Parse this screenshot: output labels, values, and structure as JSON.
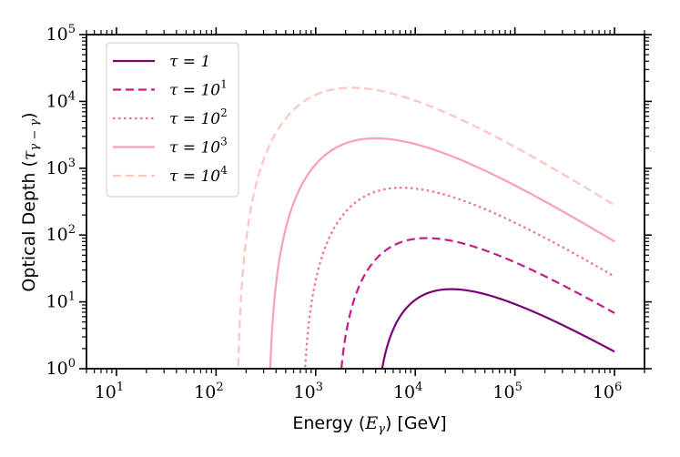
{
  "chart_data": {
    "type": "line",
    "title": "",
    "xlabel": "Energy (E_γ) [GeV]",
    "ylabel": "Optical Depth (τ_{γ−γ})",
    "xscale": "log",
    "yscale": "log",
    "xlim": [
      5,
      2000000
    ],
    "ylim": [
      1,
      100000
    ],
    "x_ticks": [
      {
        "value": 10,
        "base": "10",
        "exp": "1"
      },
      {
        "value": 100,
        "base": "10",
        "exp": "2"
      },
      {
        "value": 1000,
        "base": "10",
        "exp": "3"
      },
      {
        "value": 10000,
        "base": "10",
        "exp": "4"
      },
      {
        "value": 100000,
        "base": "10",
        "exp": "5"
      },
      {
        "value": 1000000,
        "base": "10",
        "exp": "6"
      }
    ],
    "y_ticks": [
      {
        "value": 1,
        "base": "10",
        "exp": "0"
      },
      {
        "value": 10,
        "base": "10",
        "exp": "1"
      },
      {
        "value": 100,
        "base": "10",
        "exp": "2"
      },
      {
        "value": 1000,
        "base": "10",
        "exp": "3"
      },
      {
        "value": 10000,
        "base": "10",
        "exp": "4"
      },
      {
        "value": 100000,
        "base": "10",
        "exp": "5"
      }
    ],
    "legend_position": "top-left",
    "series": [
      {
        "name": "τ = 1",
        "label_base": "τ = 1",
        "label_exp": "",
        "color": "#7a0177",
        "dash": "solid",
        "threshold": 3850,
        "peak_x": 23000,
        "peak_y": 15.5,
        "x_end": 1000000,
        "y_end": 1.8
      },
      {
        "name": "τ = 10^1",
        "label_base": "τ = 10",
        "label_exp": "1",
        "color": "#c51b8a",
        "dash": "dashed",
        "threshold": 1600,
        "peak_x": 13000,
        "peak_y": 90,
        "x_end": 1000000,
        "y_end": 6.8
      },
      {
        "name": "τ = 10^2",
        "label_base": "τ = 10",
        "label_exp": "2",
        "color": "#f768a1",
        "dash": "dotted",
        "threshold": 720,
        "peak_x": 7300,
        "peak_y": 510,
        "x_end": 1000000,
        "y_end": 24
      },
      {
        "name": "τ = 10^3",
        "label_base": "τ = 10",
        "label_exp": "3",
        "color": "#fa9fb5",
        "dash": "solid",
        "threshold": 330,
        "peak_x": 4000,
        "peak_y": 2800,
        "x_end": 1000000,
        "y_end": 80
      },
      {
        "name": "τ = 10^4",
        "label_base": "τ = 10",
        "label_exp": "4",
        "color": "#fcc5c0",
        "dash": "dashed",
        "threshold": 160,
        "peak_x": 2300,
        "peak_y": 16000,
        "x_end": 1000000,
        "y_end": 280
      }
    ]
  }
}
